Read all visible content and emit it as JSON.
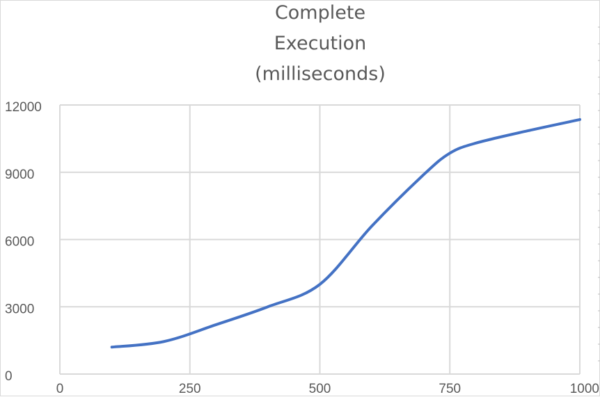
{
  "chart_data": {
    "type": "line",
    "title_lines": [
      "Complete",
      "Execution",
      "(milliseconds)"
    ],
    "xlabel": "",
    "ylabel": "",
    "xlim": [
      0,
      1000
    ],
    "ylim": [
      0,
      12000
    ],
    "x_ticks": [
      0,
      250,
      500,
      750,
      1000
    ],
    "y_ticks": [
      0,
      3000,
      6000,
      9000,
      12000
    ],
    "x_tick_labels": [
      "0",
      "250",
      "500",
      "750",
      "1000"
    ],
    "y_tick_labels": [
      "0",
      "3000",
      "6000",
      "9000",
      "12000"
    ],
    "grid": true,
    "legend": "none",
    "series": [
      {
        "color": "#4472c4",
        "x": [
          100,
          200,
          300,
          400,
          500,
          600,
          700,
          750,
          800,
          900,
          1000
        ],
        "y": [
          1200,
          1450,
          2200,
          3000,
          4000,
          6600,
          8900,
          9850,
          10300,
          10850,
          11350
        ]
      }
    ]
  },
  "colors": {
    "grid": "#d9d9d9",
    "axis_text": "#595959",
    "title": "#595959",
    "line": "#4472c4"
  }
}
